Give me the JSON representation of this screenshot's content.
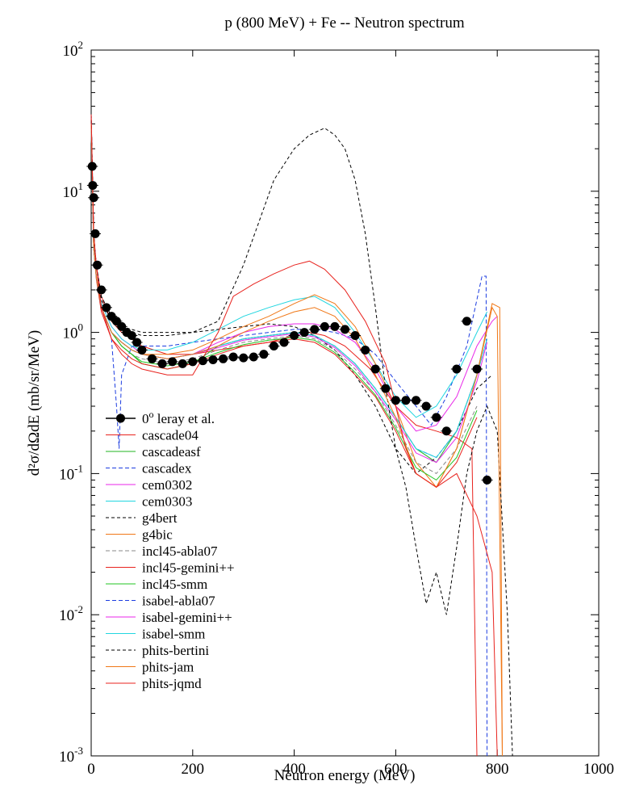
{
  "chart_data": {
    "type": "line",
    "title": "p (800 MeV) + Fe -- Neutron spectrum",
    "xlabel": "Neutron energy (MeV)",
    "ylabel": "d²σ/dΩdE (mb/sr/MeV)",
    "xlim": [
      0,
      1000
    ],
    "ylim": [
      0.001,
      100
    ],
    "yscale": "log",
    "x_ticks": [
      "0",
      "200",
      "400",
      "600",
      "800",
      "1000"
    ],
    "y_ticks": [
      {
        "value": 0.001,
        "base": "10",
        "exp": "-3"
      },
      {
        "value": 0.01,
        "base": "10",
        "exp": "-2"
      },
      {
        "value": 0.1,
        "base": "10",
        "exp": "-1"
      },
      {
        "value": 1,
        "base": "10",
        "exp": "0"
      },
      {
        "value": 10,
        "base": "10",
        "exp": "1"
      },
      {
        "value": 100,
        "base": "10",
        "exp": "2"
      }
    ],
    "legend_position": "lower-left",
    "experimental": {
      "name": "0° leray et al.",
      "name_superscript": "o",
      "name_rest": " leray et al.",
      "name_prefix": "0",
      "color": "#000000",
      "x": [
        2,
        3,
        5,
        8,
        12,
        20,
        30,
        40,
        50,
        60,
        70,
        80,
        90,
        100,
        120,
        140,
        160,
        180,
        200,
        220,
        240,
        260,
        280,
        300,
        320,
        340,
        360,
        380,
        400,
        420,
        440,
        460,
        480,
        500,
        520,
        540,
        560,
        580,
        600,
        620,
        640,
        660,
        680,
        700,
        720,
        740,
        760,
        780
      ],
      "y": [
        15,
        11,
        9,
        5,
        3,
        2,
        1.5,
        1.3,
        1.2,
        1.1,
        1.0,
        0.95,
        0.85,
        0.75,
        0.65,
        0.6,
        0.62,
        0.6,
        0.62,
        0.63,
        0.64,
        0.65,
        0.67,
        0.66,
        0.67,
        0.7,
        0.8,
        0.85,
        0.95,
        1.0,
        1.05,
        1.1,
        1.1,
        1.05,
        0.95,
        0.75,
        0.55,
        0.4,
        0.33,
        0.33,
        0.33,
        0.3,
        0.25,
        0.2,
        0.55,
        1.2,
        0.55,
        0.09
      ]
    },
    "series": [
      {
        "name": "cascade04",
        "color": "#e8231e",
        "dash": "",
        "x": [
          0,
          5,
          10,
          20,
          40,
          60,
          80,
          100,
          150,
          200,
          250,
          300,
          350,
          400,
          430,
          460,
          500,
          550,
          600,
          640,
          680,
          720,
          750,
          760
        ],
        "y": [
          35,
          5,
          3,
          1.8,
          1.2,
          1.0,
          0.9,
          0.8,
          0.7,
          0.7,
          0.75,
          0.8,
          0.85,
          0.95,
          1.0,
          0.95,
          0.8,
          0.55,
          0.3,
          0.22,
          0.2,
          0.18,
          0.15,
          0.001
        ]
      },
      {
        "name": "cascadeasf",
        "color": "#22b422",
        "dash": "",
        "x": [
          0,
          5,
          10,
          20,
          40,
          60,
          80,
          100,
          150,
          200,
          250,
          300,
          350,
          400,
          440,
          480,
          520,
          560,
          600,
          640,
          680,
          720,
          760,
          780
        ],
        "y": [
          30,
          4,
          2.5,
          1.5,
          1.0,
          0.8,
          0.7,
          0.6,
          0.55,
          0.6,
          0.8,
          0.9,
          0.95,
          1.0,
          0.95,
          0.8,
          0.6,
          0.4,
          0.25,
          0.15,
          0.12,
          0.2,
          0.5,
          1.1
        ]
      },
      {
        "name": "cascadex",
        "color": "#1c3ce0",
        "dash": "5,3",
        "x": [
          0,
          5,
          10,
          20,
          40,
          50,
          55,
          60,
          80,
          100,
          150,
          200,
          250,
          300,
          350,
          400,
          440,
          480,
          520,
          560,
          600,
          640,
          670,
          700,
          740,
          770,
          778,
          780
        ],
        "y": [
          35,
          5,
          2.5,
          1.5,
          0.9,
          0.3,
          0.15,
          0.5,
          0.8,
          0.8,
          0.8,
          0.85,
          0.9,
          0.95,
          1.0,
          1.05,
          1.05,
          1.0,
          0.9,
          0.7,
          0.45,
          0.3,
          0.22,
          0.35,
          0.8,
          2.5,
          2.5,
          0.001
        ]
      },
      {
        "name": "cem0302",
        "color": "#e826e8",
        "dash": "",
        "x": [
          0,
          5,
          10,
          20,
          40,
          60,
          80,
          100,
          150,
          200,
          250,
          300,
          350,
          400,
          440,
          480,
          520,
          560,
          600,
          640,
          680,
          720,
          760,
          790,
          800
        ],
        "y": [
          30,
          4,
          2.5,
          1.6,
          1.1,
          0.9,
          0.8,
          0.7,
          0.65,
          0.7,
          0.85,
          1.0,
          1.1,
          1.15,
          1.15,
          1.05,
          0.85,
          0.55,
          0.3,
          0.2,
          0.22,
          0.35,
          0.8,
          1.2,
          1.3
        ]
      },
      {
        "name": "cem0303",
        "color": "#22d6e0",
        "dash": "",
        "x": [
          0,
          5,
          10,
          20,
          40,
          60,
          80,
          100,
          150,
          200,
          250,
          300,
          350,
          400,
          440,
          480,
          520,
          560,
          600,
          640,
          680,
          720,
          760,
          780
        ],
        "y": [
          30,
          4,
          2.5,
          1.6,
          1.1,
          0.9,
          0.8,
          0.75,
          0.75,
          0.85,
          1.05,
          1.3,
          1.5,
          1.7,
          1.8,
          1.5,
          1.0,
          0.6,
          0.35,
          0.25,
          0.3,
          0.5,
          1.0,
          1.4
        ]
      },
      {
        "name": "g4bert",
        "color": "#000000",
        "dash": "4,3",
        "x": [
          0,
          5,
          10,
          20,
          40,
          60,
          80,
          100,
          150,
          200,
          250,
          300,
          350,
          400,
          440,
          480,
          520,
          560,
          600,
          640,
          680,
          720,
          760,
          790
        ],
        "y": [
          35,
          5,
          3,
          1.8,
          1.3,
          1.1,
          1.0,
          0.95,
          0.95,
          1.0,
          1.05,
          1.1,
          1.15,
          1.1,
          0.95,
          0.75,
          0.5,
          0.3,
          0.15,
          0.1,
          0.13,
          0.2,
          0.4,
          0.5
        ]
      },
      {
        "name": "g4bic",
        "color": "#f07818",
        "dash": "",
        "x": [
          0,
          5,
          10,
          20,
          40,
          60,
          80,
          100,
          150,
          200,
          250,
          300,
          350,
          400,
          440,
          480,
          520,
          560,
          600,
          640,
          680,
          720,
          760,
          790,
          805,
          810
        ],
        "y": [
          30,
          4,
          2.5,
          1.5,
          1.0,
          0.85,
          0.75,
          0.7,
          0.7,
          0.75,
          0.9,
          1.1,
          1.3,
          1.6,
          1.85,
          1.6,
          1.1,
          0.6,
          0.3,
          0.12,
          0.08,
          0.15,
          0.5,
          1.6,
          1.5,
          0.001
        ]
      },
      {
        "name": "incl45-abla07",
        "color": "#888888",
        "dash": "5,3",
        "x": [
          0,
          5,
          10,
          20,
          40,
          60,
          80,
          100,
          150,
          200,
          250,
          300,
          350,
          400,
          440,
          480,
          520,
          560,
          600,
          640,
          680,
          720,
          760
        ],
        "y": [
          30,
          4,
          2.5,
          1.5,
          1.0,
          0.8,
          0.7,
          0.65,
          0.6,
          0.65,
          0.75,
          0.85,
          0.9,
          0.95,
          0.9,
          0.75,
          0.55,
          0.38,
          0.22,
          0.12,
          0.1,
          0.15,
          0.3
        ]
      },
      {
        "name": "incl45-gemini++",
        "color": "#e8231e",
        "dash": "",
        "x": [
          0,
          5,
          10,
          20,
          40,
          60,
          80,
          100,
          150,
          200,
          250,
          300,
          350,
          400,
          440,
          480,
          520,
          560,
          600,
          640,
          680,
          720,
          760
        ],
        "y": [
          30,
          4,
          2.4,
          1.4,
          0.9,
          0.75,
          0.65,
          0.6,
          0.55,
          0.6,
          0.7,
          0.8,
          0.85,
          0.9,
          0.85,
          0.7,
          0.5,
          0.35,
          0.2,
          0.1,
          0.08,
          0.12,
          0.25
        ]
      },
      {
        "name": "incl45-smm",
        "color": "#22c422",
        "dash": "",
        "x": [
          0,
          5,
          10,
          20,
          40,
          60,
          80,
          100,
          150,
          200,
          250,
          300,
          350,
          400,
          440,
          480,
          520,
          560,
          600,
          640,
          680,
          720,
          760
        ],
        "y": [
          30,
          4,
          2.5,
          1.5,
          1.0,
          0.8,
          0.7,
          0.62,
          0.58,
          0.62,
          0.72,
          0.82,
          0.88,
          0.92,
          0.88,
          0.72,
          0.52,
          0.36,
          0.21,
          0.11,
          0.09,
          0.13,
          0.28
        ]
      },
      {
        "name": "isabel-abla07",
        "color": "#1c3ce0",
        "dash": "5,3",
        "x": [
          0,
          5,
          10,
          20,
          40,
          60,
          80,
          100,
          150,
          200,
          250,
          300,
          350,
          400,
          440,
          480,
          520,
          560,
          600,
          640,
          680,
          720,
          760,
          780
        ],
        "y": [
          30,
          4,
          2.5,
          1.5,
          1.0,
          0.85,
          0.75,
          0.7,
          0.65,
          0.7,
          0.8,
          0.9,
          0.95,
          1.0,
          0.95,
          0.8,
          0.6,
          0.4,
          0.25,
          0.15,
          0.13,
          0.2,
          0.5,
          0.9
        ]
      },
      {
        "name": "isabel-gemini++",
        "color": "#e826e8",
        "dash": "",
        "x": [
          0,
          5,
          10,
          20,
          40,
          60,
          80,
          100,
          150,
          200,
          250,
          300,
          350,
          400,
          440,
          480,
          520,
          560,
          600,
          640,
          680,
          720,
          760,
          780
        ],
        "y": [
          30,
          4,
          2.5,
          1.5,
          1.0,
          0.85,
          0.75,
          0.7,
          0.65,
          0.7,
          0.78,
          0.88,
          0.93,
          0.98,
          0.93,
          0.78,
          0.58,
          0.38,
          0.24,
          0.14,
          0.12,
          0.18,
          0.45,
          0.85
        ]
      },
      {
        "name": "isabel-smm",
        "color": "#22d6e0",
        "dash": "",
        "x": [
          0,
          5,
          10,
          20,
          40,
          60,
          80,
          100,
          150,
          200,
          250,
          300,
          350,
          400,
          440,
          480,
          520,
          560,
          600,
          640,
          680,
          720,
          760,
          780
        ],
        "y": [
          30,
          4,
          2.5,
          1.5,
          1.0,
          0.85,
          0.75,
          0.7,
          0.65,
          0.7,
          0.8,
          0.9,
          0.95,
          1.0,
          0.95,
          0.8,
          0.6,
          0.4,
          0.25,
          0.15,
          0.13,
          0.2,
          0.5,
          0.9
        ]
      },
      {
        "name": "phits-bertini",
        "color": "#000000",
        "dash": "4,3",
        "x": [
          0,
          5,
          10,
          20,
          40,
          60,
          80,
          100,
          150,
          200,
          250,
          300,
          330,
          360,
          400,
          430,
          460,
          480,
          500,
          520,
          540,
          560,
          580,
          600,
          620,
          640,
          660,
          680,
          700,
          720,
          740,
          760,
          780,
          800,
          820,
          830
        ],
        "y": [
          35,
          5,
          3,
          1.7,
          1.2,
          1.1,
          1.05,
          1.0,
          1.0,
          1.0,
          1.2,
          3,
          6,
          12,
          20,
          25,
          28,
          25,
          20,
          12,
          5,
          1.5,
          0.4,
          0.15,
          0.08,
          0.03,
          0.012,
          0.02,
          0.01,
          0.03,
          0.1,
          0.2,
          0.3,
          0.2,
          0.01,
          0.001
        ]
      },
      {
        "name": "phits-jam",
        "color": "#f07818",
        "dash": "",
        "x": [
          0,
          5,
          10,
          20,
          40,
          60,
          80,
          100,
          150,
          200,
          250,
          300,
          350,
          400,
          440,
          480,
          520,
          560,
          600,
          640,
          680,
          720,
          760,
          790,
          800,
          810
        ],
        "y": [
          30,
          4,
          2.5,
          1.5,
          1.0,
          0.85,
          0.75,
          0.7,
          0.65,
          0.7,
          0.8,
          1.0,
          1.2,
          1.4,
          1.5,
          1.3,
          0.9,
          0.5,
          0.25,
          0.1,
          0.08,
          0.15,
          0.5,
          1.5,
          1.3,
          0.001
        ]
      },
      {
        "name": "phits-jqmd",
        "color": "#e8231e",
        "dash": "",
        "x": [
          0,
          5,
          10,
          20,
          40,
          60,
          80,
          100,
          150,
          200,
          250,
          280,
          320,
          360,
          400,
          430,
          460,
          500,
          540,
          580,
          600,
          620,
          640,
          680,
          720,
          760,
          790,
          800
        ],
        "y": [
          35,
          5,
          3,
          1.5,
          0.9,
          0.7,
          0.6,
          0.55,
          0.5,
          0.5,
          1.0,
          1.8,
          2.2,
          2.6,
          3.0,
          3.2,
          2.8,
          2.0,
          1.2,
          0.6,
          0.3,
          0.15,
          0.1,
          0.08,
          0.1,
          0.05,
          0.02,
          0.001
        ]
      }
    ]
  }
}
